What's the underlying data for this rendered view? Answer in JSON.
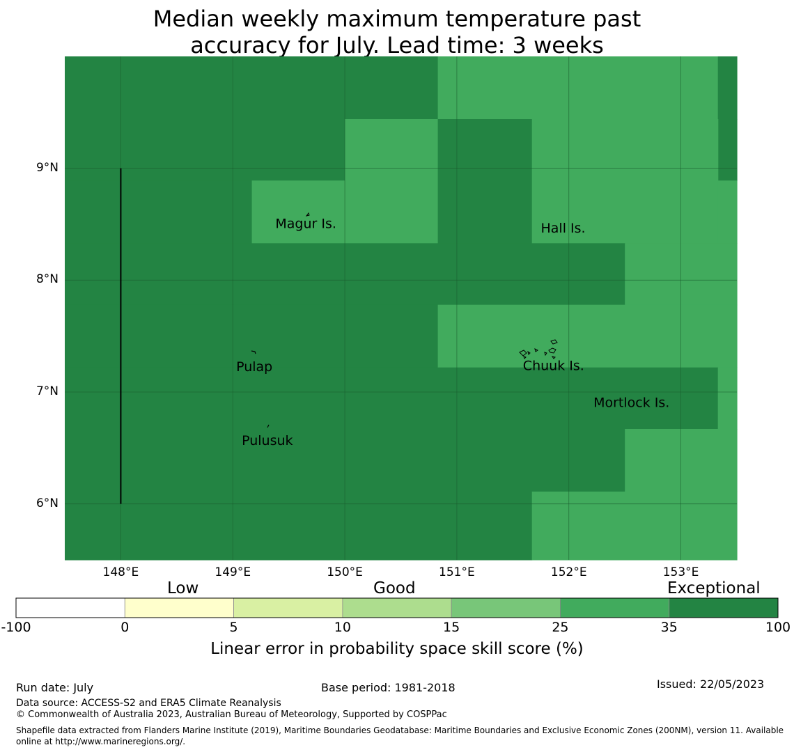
{
  "title_line1": "Median weekly maximum temperature past",
  "title_line2": "accuracy for July. Lead time: 3 weeks",
  "map": {
    "lon_range": [
      147.5,
      153.5
    ],
    "lat_range": [
      5.5,
      10.0
    ],
    "x_ticks": [
      {
        "value": 148,
        "label": "148°E"
      },
      {
        "value": 149,
        "label": "149°E"
      },
      {
        "value": 150,
        "label": "150°E"
      },
      {
        "value": 151,
        "label": "151°E"
      },
      {
        "value": 152,
        "label": "152°E"
      },
      {
        "value": 153,
        "label": "153°E"
      }
    ],
    "y_ticks": [
      {
        "value": 9,
        "label": "9°N"
      },
      {
        "value": 8,
        "label": "8°N"
      },
      {
        "value": 7,
        "label": "7°N"
      },
      {
        "value": 6,
        "label": "6°N"
      }
    ],
    "places": [
      {
        "name": "Magur Is.",
        "lon": 149.38,
        "lat": 8.5
      },
      {
        "name": "Hall Is.",
        "lon": 151.75,
        "lat": 8.46
      },
      {
        "name": "Pulap",
        "lon": 149.03,
        "lat": 7.22
      },
      {
        "name": "Chuuk Is.",
        "lon": 151.59,
        "lat": 7.23
      },
      {
        "name": "Mortlock Is.",
        "lon": 152.22,
        "lat": 6.9
      },
      {
        "name": "Pulusuk",
        "lon": 149.08,
        "lat": 6.56
      }
    ],
    "grid_cells": [
      {
        "lon0": 147.5,
        "lon1": 150.83,
        "lat0": 9.44,
        "lat1": 10.0,
        "skill_class": "exceptional"
      },
      {
        "lon0": 150.83,
        "lon1": 153.33,
        "lat0": 9.44,
        "lat1": 10.0,
        "skill_class": "high"
      },
      {
        "lon0": 153.33,
        "lon1": 153.5,
        "lat0": 9.44,
        "lat1": 10.0,
        "skill_class": "exceptional"
      },
      {
        "lon0": 153.33,
        "lon1": 153.5,
        "lat0": 8.89,
        "lat1": 9.44,
        "skill_class": "exceptional"
      },
      {
        "lon0": 147.5,
        "lon1": 150.0,
        "lat0": 8.89,
        "lat1": 9.44,
        "skill_class": "exceptional"
      },
      {
        "lon0": 150.0,
        "lon1": 150.83,
        "lat0": 8.33,
        "lat1": 9.44,
        "skill_class": "high"
      },
      {
        "lon0": 150.83,
        "lon1": 151.67,
        "lat0": 8.33,
        "lat1": 9.44,
        "skill_class": "exceptional"
      },
      {
        "lon0": 151.67,
        "lon1": 153.33,
        "lat0": 8.33,
        "lat1": 9.44,
        "skill_class": "high"
      },
      {
        "lon0": 153.33,
        "lon1": 153.5,
        "lat0": 8.33,
        "lat1": 8.89,
        "skill_class": "high"
      },
      {
        "lon0": 147.5,
        "lon1": 149.17,
        "lat0": 8.33,
        "lat1": 8.89,
        "skill_class": "exceptional"
      },
      {
        "lon0": 149.17,
        "lon1": 150.0,
        "lat0": 8.33,
        "lat1": 8.89,
        "skill_class": "high"
      },
      {
        "lon0": 147.5,
        "lon1": 152.5,
        "lat0": 7.78,
        "lat1": 8.33,
        "skill_class": "exceptional"
      },
      {
        "lon0": 152.5,
        "lon1": 153.5,
        "lat0": 7.78,
        "lat1": 8.33,
        "skill_class": "high"
      },
      {
        "lon0": 147.5,
        "lon1": 150.83,
        "lat0": 7.22,
        "lat1": 7.78,
        "skill_class": "exceptional"
      },
      {
        "lon0": 150.83,
        "lon1": 153.5,
        "lat0": 7.22,
        "lat1": 7.78,
        "skill_class": "high"
      },
      {
        "lon0": 147.5,
        "lon1": 153.33,
        "lat0": 6.67,
        "lat1": 7.22,
        "skill_class": "exceptional"
      },
      {
        "lon0": 153.33,
        "lon1": 153.5,
        "lat0": 6.67,
        "lat1": 7.22,
        "skill_class": "high"
      },
      {
        "lon0": 147.5,
        "lon1": 152.5,
        "lat0": 6.11,
        "lat1": 6.67,
        "skill_class": "exceptional"
      },
      {
        "lon0": 152.5,
        "lon1": 153.5,
        "lat0": 6.11,
        "lat1": 6.67,
        "skill_class": "high"
      },
      {
        "lon0": 147.5,
        "lon1": 151.67,
        "lat0": 5.5,
        "lat1": 6.11,
        "skill_class": "exceptional"
      },
      {
        "lon0": 151.67,
        "lon1": 153.5,
        "lat0": 5.5,
        "lat1": 6.11,
        "skill_class": "high"
      }
    ],
    "boundary_line": {
      "lon": 148.0,
      "lat0": 6.0,
      "lat1": 9.0
    }
  },
  "colors": {
    "exceptional": "#238443",
    "high": "#41ab5d",
    "bins": [
      "#ffffff",
      "#ffffcc",
      "#d9f0a3",
      "#addd8e",
      "#78c679",
      "#41ab5d",
      "#238443"
    ]
  },
  "colorbar": {
    "words": {
      "low": "Low",
      "good": "Good",
      "exceptional": "Exceptional"
    },
    "ticks": [
      "-100",
      "0",
      "5",
      "10",
      "15",
      "25",
      "35",
      "100"
    ],
    "label": "Linear error in probability space skill score (%)"
  },
  "footer": {
    "run_date": "Run date: July",
    "base_period": "Base period: 1981-2018",
    "issued": "Issued: 22/05/2023",
    "data_source": "Data source: ACCESS-S2 and ERA5 Climate Reanalysis",
    "copyright": "© Commonwealth of Australia 2023, Australian Bureau of Meteorology, Supported by COSPPac",
    "shapefile": "Shapefile data extracted from Flanders Marine Institute (2019), Maritime Boundaries Geodatabase: Maritime Boundaries and Exclusive Economic Zones (200NM), version 11. Available online at http://www.marineregions.org/."
  }
}
